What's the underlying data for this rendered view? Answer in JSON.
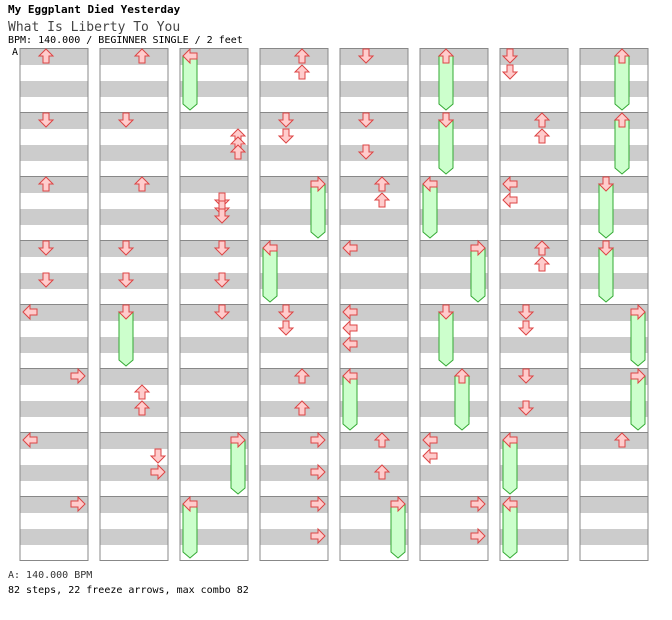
{
  "header": {
    "song": "My Eggplant Died Yesterday",
    "subtitle": "What Is Liberty To You",
    "info": "BPM: 140.000 / BEGINNER SINGLE / 2 feet",
    "bpm_marker": "A"
  },
  "footer": {
    "bpm_line": "A: 140.000 BPM",
    "stats": "82 steps, 22 freeze arrows, max combo 82"
  },
  "colors": {
    "stripe": "#cccccc",
    "arrow_fill": "#ffcccc",
    "arrow_stroke": "#dd4444",
    "freeze_fill": "#ccffcc",
    "freeze_stroke": "#33aa33",
    "marker_line": "#7fa7e8"
  },
  "chart_data": {
    "type": "step-chart",
    "columns": 8,
    "measures_per_column": 8,
    "lanes": [
      "left",
      "down",
      "up",
      "right"
    ],
    "rows_per_measure": 4,
    "measures": [
      [
        [
          "up",
          1,
          0
        ]
      ],
      [
        [
          "down",
          1,
          0
        ]
      ],
      [
        [
          "up",
          1,
          0
        ]
      ],
      [
        [
          "down",
          1,
          0
        ],
        [
          "down",
          1,
          2
        ]
      ],
      [
        [
          "left",
          0,
          0
        ]
      ],
      [
        [
          "right",
          3,
          0
        ]
      ],
      [
        [
          "left",
          0,
          0
        ]
      ],
      [
        [
          "right",
          3,
          0
        ]
      ],
      [
        [
          "up",
          2,
          0
        ]
      ],
      [
        [
          "down",
          1,
          0
        ]
      ],
      [
        [
          "up",
          2,
          0
        ]
      ],
      [
        [
          "down",
          1,
          0
        ],
        [
          "down",
          1,
          2
        ]
      ],
      [
        [
          "down",
          1,
          0,
          "freeze",
          1.5
        ]
      ],
      [
        [
          "up",
          2,
          1
        ],
        [
          "up",
          2,
          2
        ]
      ],
      [
        [
          "down",
          3,
          1
        ],
        [
          "right",
          3,
          2
        ]
      ],
      [],
      [
        [
          "left",
          0,
          0,
          "freeze",
          1.5
        ]
      ],
      [
        [
          "up",
          3,
          1
        ],
        [
          "up",
          3,
          1.5
        ],
        [
          "up",
          3,
          2
        ]
      ],
      [
        [
          "down",
          2,
          1
        ],
        [
          "down",
          2,
          1.5
        ],
        [
          "down",
          2,
          2
        ]
      ],
      [
        [
          "down",
          2,
          0
        ],
        [
          "down",
          2,
          2
        ]
      ],
      [
        [
          "down",
          2,
          0
        ]
      ],
      [],
      [
        [
          "right",
          3,
          0,
          "freeze",
          1.5
        ]
      ],
      [
        [
          "left",
          0,
          0,
          "freeze",
          1.5
        ]
      ],
      [
        [
          "up",
          2,
          0
        ],
        [
          "up",
          2,
          1
        ]
      ],
      [
        [
          "down",
          1,
          0
        ],
        [
          "down",
          1,
          1
        ]
      ],
      [
        [
          "right",
          3,
          0,
          "freeze",
          1.5
        ]
      ],
      [
        [
          "left",
          0,
          0,
          "freeze",
          1.5
        ]
      ],
      [
        [
          "down",
          1,
          0
        ],
        [
          "down",
          1,
          1
        ]
      ],
      [
        [
          "up",
          2,
          0
        ],
        [
          "up",
          2,
          2
        ]
      ],
      [
        [
          "right",
          3,
          0
        ],
        [
          "right",
          3,
          2
        ]
      ],
      [
        [
          "right",
          3,
          0
        ],
        [
          "right",
          3,
          2
        ]
      ],
      [
        [
          "down",
          1,
          0
        ]
      ],
      [
        [
          "down",
          1,
          0
        ],
        [
          "down",
          1,
          2
        ]
      ],
      [
        [
          "up",
          2,
          0
        ],
        [
          "up",
          2,
          1
        ]
      ],
      [
        [
          "left",
          0,
          0
        ]
      ],
      [
        [
          "left",
          0,
          0
        ],
        [
          "left",
          0,
          1
        ],
        [
          "left",
          0,
          2
        ]
      ],
      [
        [
          "left",
          0,
          0,
          "freeze",
          1.5
        ]
      ],
      [
        [
          "up",
          2,
          0
        ],
        [
          "up",
          2,
          2
        ]
      ],
      [
        [
          "right",
          3,
          0,
          "freeze",
          1.5
        ]
      ],
      [
        [
          "up",
          1,
          0,
          "freeze",
          1.5
        ]
      ],
      [
        [
          "down",
          1,
          0,
          "freeze",
          1.5
        ]
      ],
      [
        [
          "left",
          0,
          0,
          "freeze",
          1.5
        ]
      ],
      [
        [
          "right",
          3,
          0,
          "freeze",
          1.5
        ]
      ],
      [
        [
          "down",
          1,
          0,
          "freeze",
          1.5
        ]
      ],
      [
        [
          "up",
          2,
          0,
          "freeze",
          1.5
        ]
      ],
      [
        [
          "left",
          0,
          0
        ],
        [
          "left",
          0,
          1
        ]
      ],
      [
        [
          "right",
          3,
          0
        ],
        [
          "right",
          3,
          2
        ]
      ],
      [
        [
          "down",
          0,
          0
        ],
        [
          "down",
          0,
          1
        ]
      ],
      [
        [
          "up",
          2,
          0
        ],
        [
          "up",
          2,
          1
        ]
      ],
      [
        [
          "left",
          0,
          0
        ],
        [
          "left",
          0,
          1
        ]
      ],
      [
        [
          "up",
          2,
          0
        ],
        [
          "up",
          2,
          1
        ]
      ],
      [
        [
          "down",
          1,
          0
        ],
        [
          "down",
          1,
          1
        ]
      ],
      [
        [
          "down",
          1,
          0
        ],
        [
          "down",
          1,
          2
        ]
      ],
      [
        [
          "left",
          0,
          0,
          "freeze",
          1.5
        ]
      ],
      [
        [
          "left",
          0,
          0,
          "freeze",
          1.5
        ]
      ],
      [
        [
          "up",
          2,
          0,
          "freeze",
          1.5
        ]
      ],
      [
        [
          "up",
          2,
          0,
          "freeze",
          1.5
        ]
      ],
      [
        [
          "down",
          1,
          0,
          "freeze",
          1.5
        ]
      ],
      [
        [
          "down",
          1,
          0,
          "freeze",
          1.5
        ]
      ],
      [
        [
          "right",
          3,
          0,
          "freeze",
          1.5
        ]
      ],
      [
        [
          "right",
          3,
          0,
          "freeze",
          1.5
        ]
      ],
      [
        [
          "up",
          2,
          0
        ]
      ],
      []
    ]
  }
}
